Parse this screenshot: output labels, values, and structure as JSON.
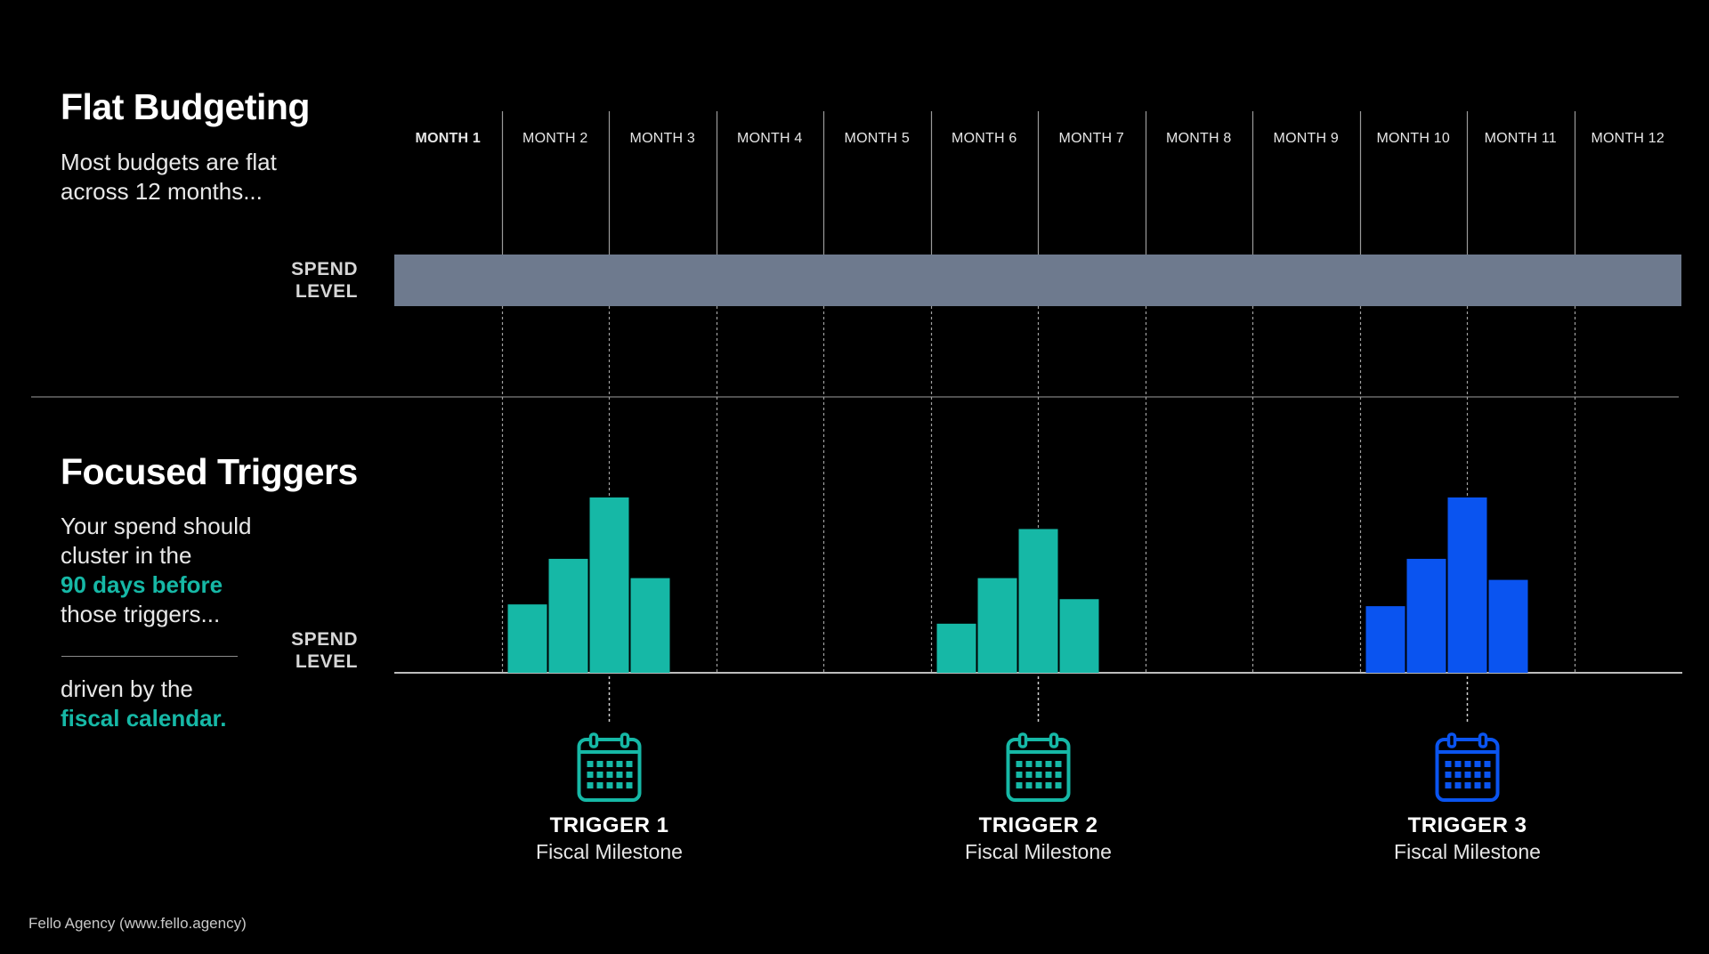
{
  "flat": {
    "title": "Flat Budgeting",
    "desc_line1": "Most budgets are flat",
    "desc_line2": "across 12 months...",
    "spend_label_1": "SPEND",
    "spend_label_2": "LEVEL"
  },
  "focused": {
    "title": "Focused Triggers",
    "desc_line1": "Your spend should",
    "desc_line2": "cluster in the",
    "desc_highlight": "90 days before",
    "desc_line4": "those triggers...",
    "driven_line1": "driven by the",
    "driven_highlight": "fiscal calendar.",
    "spend_label_1": "SPEND",
    "spend_label_2": "LEVEL"
  },
  "months": [
    "MONTH 1",
    "MONTH 2",
    "MONTH 3",
    "MONTH 4",
    "MONTH 5",
    "MONTH 6",
    "MONTH 7",
    "MONTH 8",
    "MONTH 9",
    "MONTH 10",
    "MONTH 11",
    "MONTH 12"
  ],
  "triggers": [
    {
      "title": "TRIGGER 1",
      "subtitle": "Fiscal Milestone",
      "color": "#16b8a6",
      "icon": "calendar-icon"
    },
    {
      "title": "TRIGGER 2",
      "subtitle": "Fiscal Milestone",
      "color": "#16b8a6",
      "icon": "calendar-icon"
    },
    {
      "title": "TRIGGER 3",
      "subtitle": "Fiscal Milestone",
      "color": "#0a54f0",
      "icon": "calendar-icon"
    }
  ],
  "chart_data": {
    "type": "bar",
    "flat_level_color": "#6e7a8e",
    "clusters": [
      {
        "trigger": "TRIGGER 1",
        "color": "#16b8a6",
        "relative_heights": [
          0.39,
          0.65,
          1.0,
          0.54
        ]
      },
      {
        "trigger": "TRIGGER 2",
        "color": "#16b8a6",
        "relative_heights": [
          0.28,
          0.54,
          0.82,
          0.42
        ]
      },
      {
        "trigger": "TRIGGER 3",
        "color": "#0a54f0",
        "relative_heights": [
          0.38,
          0.65,
          1.0,
          0.53
        ]
      }
    ]
  },
  "footer": "Fello Agency (www.fello.agency)"
}
